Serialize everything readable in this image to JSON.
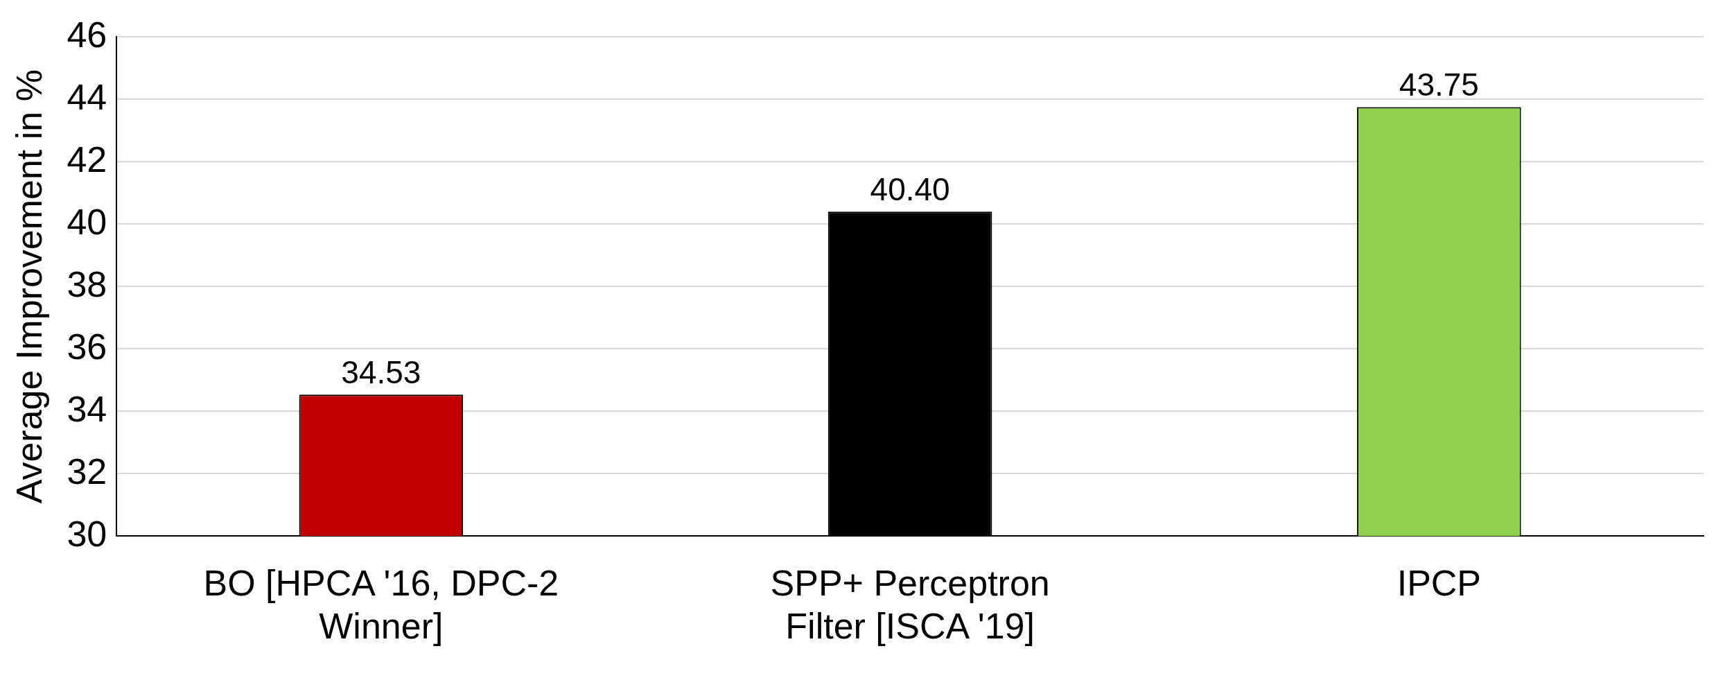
{
  "chart_data": {
    "type": "bar",
    "ylabel": "Average Improvement in %",
    "categories": [
      "BO [HPCA '16, DPC-2 Winner]",
      "SPP+ Perceptron Filter [ISCA '19]",
      "IPCP"
    ],
    "values": [
      34.53,
      40.4,
      43.75
    ],
    "value_labels": [
      "34.53",
      "40.40",
      "43.75"
    ],
    "colors": [
      "#c00000",
      "#000000",
      "#92d050"
    ],
    "ylim": [
      30,
      46
    ],
    "yticks": [
      30,
      32,
      34,
      36,
      38,
      40,
      42,
      44,
      46
    ],
    "grid": "y",
    "legend": false
  }
}
